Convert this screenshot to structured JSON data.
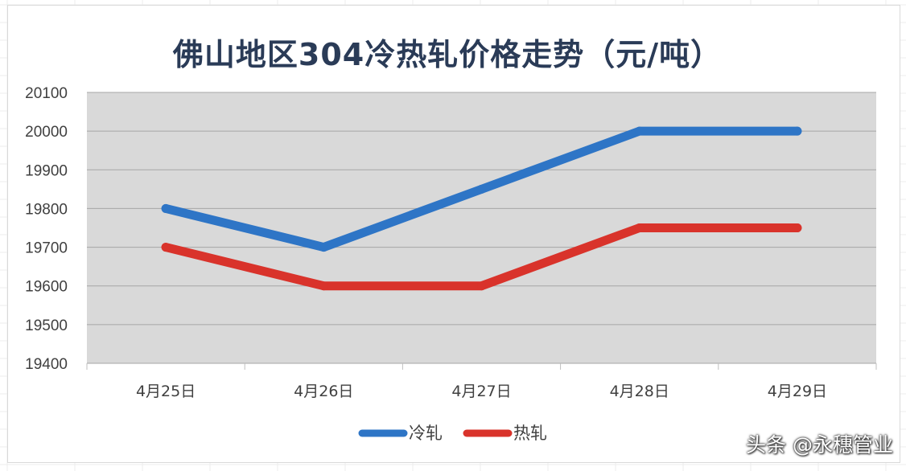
{
  "chart_data": {
    "type": "line",
    "title": "佛山地区304冷热轧价格走势（元/吨）",
    "categories": [
      "4月25日",
      "4月26日",
      "4月27日",
      "4月28日",
      "4月29日"
    ],
    "series": [
      {
        "name": "冷轧",
        "color": "#2e75c6",
        "values": [
          19800,
          19700,
          19850,
          20000,
          20000
        ]
      },
      {
        "name": "热轧",
        "color": "#d9332b",
        "values": [
          19700,
          19600,
          19600,
          19750,
          19750
        ]
      }
    ],
    "ylim": [
      19400,
      20100
    ],
    "yticks": [
      19400,
      19500,
      19600,
      19700,
      19800,
      19900,
      20000,
      20100
    ],
    "grid": true,
    "legend": "bottom",
    "plot_bg": "#d9d9d9"
  },
  "watermark": "头条 @永穗管业"
}
